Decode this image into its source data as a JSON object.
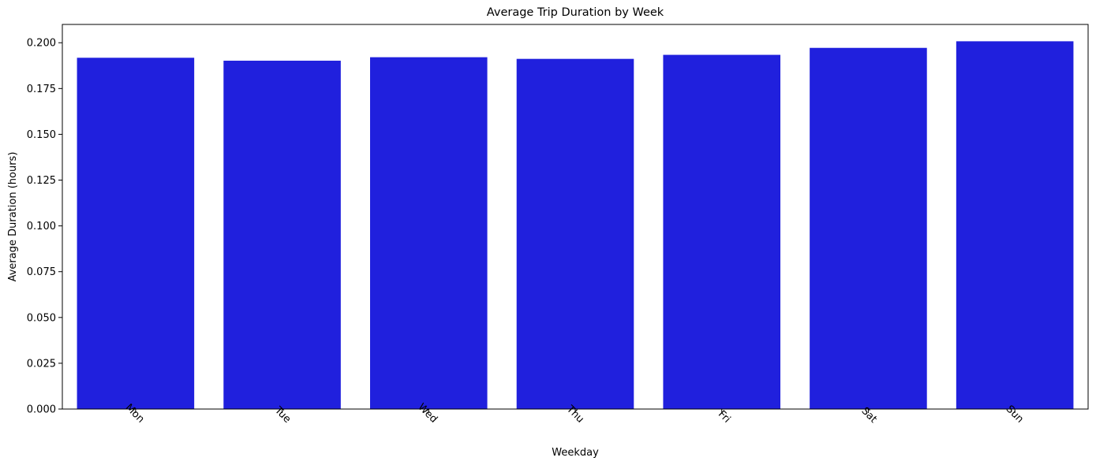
{
  "chart_data": {
    "type": "bar",
    "title": "Average Trip Duration by Week",
    "xlabel": "Weekday",
    "ylabel": "Average Duration (hours)",
    "categories": [
      "Mon",
      "Tue",
      "Wed",
      "Thu",
      "Fri",
      "Sat",
      "Sun"
    ],
    "values": [
      0.1918,
      0.1902,
      0.1921,
      0.1912,
      0.1934,
      0.1972,
      0.2008
    ],
    "ylim": [
      0,
      0.21
    ],
    "yticks": [
      0.0,
      0.025,
      0.05,
      0.075,
      0.1,
      0.125,
      0.15,
      0.175,
      0.2
    ],
    "ytick_labels": [
      "0.000",
      "0.025",
      "0.050",
      "0.075",
      "0.100",
      "0.125",
      "0.150",
      "0.175",
      "0.200"
    ],
    "xtick_rotation": "45 degrees",
    "bar_color": "#2020dd",
    "grid": false,
    "legend": "none"
  }
}
